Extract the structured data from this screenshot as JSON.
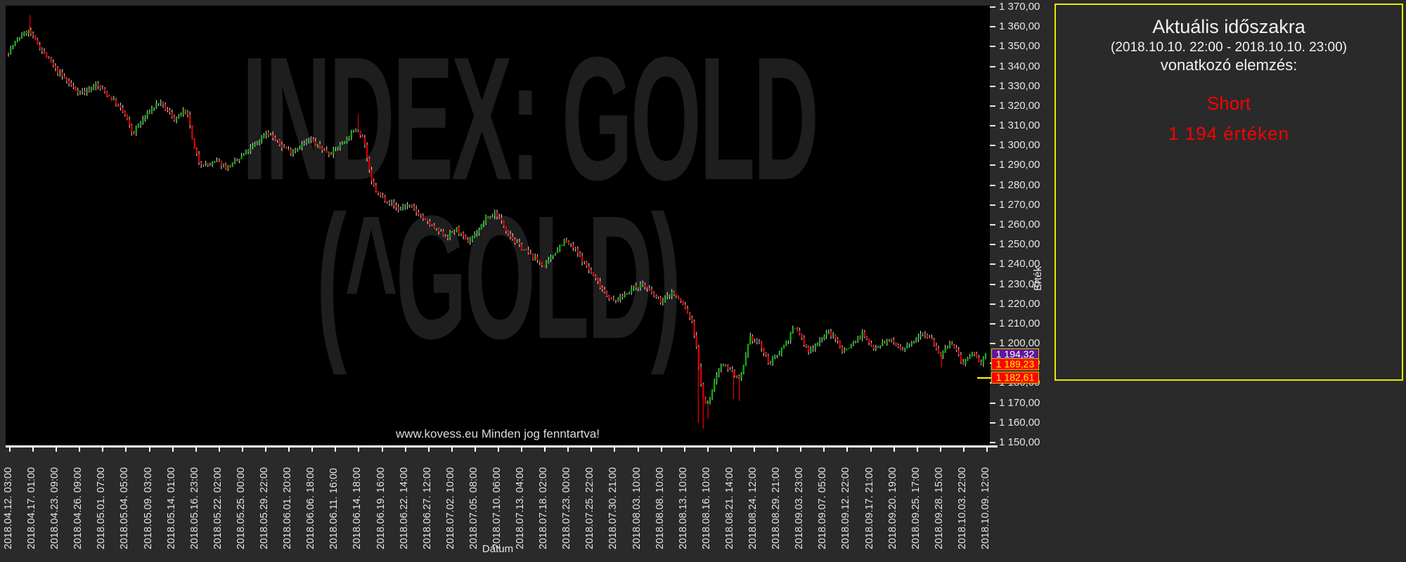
{
  "chart": {
    "watermark_line1": "INDEX: GOLD",
    "watermark_line2": "(^GOLD)",
    "copyright": "www.kovess.eu Minden jog fenntartva!",
    "x_axis": {
      "title": "Dátum",
      "labels": [
        "2018.04.12. 03:00",
        "2018.04.17. 01:00",
        "2018.04.23. 09:00",
        "2018.04.26. 09:00",
        "2018.05.01. 07:00",
        "2018.05.04. 05:00",
        "2018.05.09. 03:00",
        "2018.05.14. 01:00",
        "2018.05.16. 23:00",
        "2018.05.22. 02:00",
        "2018.05.25. 00:00",
        "2018.05.29. 22:00",
        "2018.06.01. 20:00",
        "2018.06.06. 18:00",
        "2018.06.11. 16:00",
        "2018.06.14. 18:00",
        "2018.06.19. 16:00",
        "2018.06.22. 14:00",
        "2018.06.27. 12:00",
        "2018.07.02. 10:00",
        "2018.07.05. 08:00",
        "2018.07.10. 06:00",
        "2018.07.13. 04:00",
        "2018.07.18. 02:00",
        "2018.07.23. 00:00",
        "2018.07.25. 22:00",
        "2018.07.30. 21:00",
        "2018.08.03. 10:00",
        "2018.08.08. 10:00",
        "2018.08.13. 10:00",
        "2018.08.16. 10:00",
        "2018.08.21. 14:00",
        "2018.08.24. 12:00",
        "2018.08.29. 21:00",
        "2018.09.03. 23:00",
        "2018.09.07. 05:00",
        "2018.09.12. 22:00",
        "2018.09.17. 21:00",
        "2018.09.20. 19:00",
        "2018.09.25. 17:00",
        "2018.09.28. 15:00",
        "2018.10.03. 22:00",
        "2018.10.09. 12:00"
      ]
    },
    "y_axis": {
      "title": "Érték",
      "labels": [
        "1 370,00",
        "1 360,00",
        "1 350,00",
        "1 340,00",
        "1 330,00",
        "1 320,00",
        "1 310,00",
        "1 300,00",
        "1 290,00",
        "1 280,00",
        "1 270,00",
        "1 260,00",
        "1 250,00",
        "1 240,00",
        "1 230,00",
        "1 220,00",
        "1 210,00",
        "1 200,00",
        "1 190,00",
        "1 180,00",
        "1 170,00",
        "1 160,00",
        "1 150,00"
      ]
    },
    "price_labels": [
      {
        "text": "1 194,32",
        "value": 1194.32,
        "bg": "#5e189b",
        "fg": "#ffffff",
        "marker": false
      },
      {
        "text": "1 189,23",
        "value": 1189.23,
        "bg": "#ff0000",
        "fg": "#ffff00",
        "marker": false
      },
      {
        "text": "1 182,61",
        "value": 1182.61,
        "bg": "#ff0000",
        "fg": "#ffff00",
        "marker": true
      }
    ],
    "chart_data": {
      "type": "candlestick",
      "symbol": "INDEX: GOLD (^GOLD)",
      "xlabel": "Dátum",
      "ylabel": "Érték",
      "x_range": [
        "2018.04.12. 03:00",
        "2018.10.10. 23:00"
      ],
      "ylim": [
        1150,
        1370
      ],
      "y_step": 10,
      "grid": false,
      "legend": false,
      "last_values": [
        1194.32,
        1189.23,
        1182.61
      ],
      "colors": {
        "up": "#00b300",
        "down": "#d40000",
        "wick": "#e8e8e8",
        "spike": "#d40000"
      },
      "candle_count": 437,
      "seed": 7,
      "jitter": 2.2,
      "wick": 1.8,
      "price_path_anchors": [
        [
          0.0,
          1347
        ],
        [
          0.008,
          1352
        ],
        [
          0.015,
          1356
        ],
        [
          0.022,
          1358
        ],
        [
          0.03,
          1352
        ],
        [
          0.04,
          1345
        ],
        [
          0.05,
          1338
        ],
        [
          0.06,
          1333
        ],
        [
          0.07,
          1328
        ],
        [
          0.08,
          1327
        ],
        [
          0.09,
          1331
        ],
        [
          0.1,
          1327
        ],
        [
          0.11,
          1322
        ],
        [
          0.12,
          1316
        ],
        [
          0.128,
          1306
        ],
        [
          0.135,
          1311
        ],
        [
          0.145,
          1317
        ],
        [
          0.155,
          1322
        ],
        [
          0.165,
          1317
        ],
        [
          0.172,
          1313
        ],
        [
          0.18,
          1317
        ],
        [
          0.186,
          1314
        ],
        [
          0.19,
          1300
        ],
        [
          0.196,
          1292
        ],
        [
          0.205,
          1290
        ],
        [
          0.215,
          1292
        ],
        [
          0.225,
          1289
        ],
        [
          0.235,
          1292
        ],
        [
          0.245,
          1297
        ],
        [
          0.255,
          1301
        ],
        [
          0.265,
          1307
        ],
        [
          0.272,
          1304
        ],
        [
          0.28,
          1300
        ],
        [
          0.29,
          1297
        ],
        [
          0.3,
          1300
        ],
        [
          0.31,
          1303
        ],
        [
          0.32,
          1299
        ],
        [
          0.33,
          1296
        ],
        [
          0.34,
          1300
        ],
        [
          0.35,
          1305
        ],
        [
          0.358,
          1309
        ],
        [
          0.365,
          1303
        ],
        [
          0.372,
          1282
        ],
        [
          0.38,
          1275
        ],
        [
          0.39,
          1272
        ],
        [
          0.4,
          1268
        ],
        [
          0.41,
          1270
        ],
        [
          0.42,
          1266
        ],
        [
          0.43,
          1261
        ],
        [
          0.44,
          1257
        ],
        [
          0.45,
          1254
        ],
        [
          0.46,
          1258
        ],
        [
          0.47,
          1251
        ],
        [
          0.48,
          1256
        ],
        [
          0.49,
          1263
        ],
        [
          0.5,
          1266
        ],
        [
          0.51,
          1258
        ],
        [
          0.52,
          1251
        ],
        [
          0.53,
          1247
        ],
        [
          0.54,
          1243
        ],
        [
          0.55,
          1239
        ],
        [
          0.56,
          1246
        ],
        [
          0.57,
          1252
        ],
        [
          0.58,
          1248
        ],
        [
          0.59,
          1241
        ],
        [
          0.6,
          1234
        ],
        [
          0.61,
          1227
        ],
        [
          0.62,
          1221
        ],
        [
          0.63,
          1224
        ],
        [
          0.64,
          1228
        ],
        [
          0.65,
          1230
        ],
        [
          0.66,
          1225
        ],
        [
          0.67,
          1221
        ],
        [
          0.68,
          1226
        ],
        [
          0.69,
          1221
        ],
        [
          0.7,
          1212
        ],
        [
          0.705,
          1200
        ],
        [
          0.71,
          1178
        ],
        [
          0.715,
          1168
        ],
        [
          0.72,
          1174
        ],
        [
          0.725,
          1183
        ],
        [
          0.73,
          1190
        ],
        [
          0.74,
          1187
        ],
        [
          0.75,
          1181
        ],
        [
          0.755,
          1192
        ],
        [
          0.76,
          1203
        ],
        [
          0.77,
          1200
        ],
        [
          0.775,
          1194
        ],
        [
          0.78,
          1190
        ],
        [
          0.79,
          1196
        ],
        [
          0.8,
          1203
        ],
        [
          0.805,
          1208
        ],
        [
          0.81,
          1206
        ],
        [
          0.815,
          1200
        ],
        [
          0.82,
          1196
        ],
        [
          0.83,
          1201
        ],
        [
          0.84,
          1206
        ],
        [
          0.85,
          1201
        ],
        [
          0.855,
          1196
        ],
        [
          0.865,
          1200
        ],
        [
          0.875,
          1205
        ],
        [
          0.885,
          1198
        ],
        [
          0.895,
          1200
        ],
        [
          0.905,
          1202
        ],
        [
          0.915,
          1196
        ],
        [
          0.925,
          1200
        ],
        [
          0.935,
          1206
        ],
        [
          0.945,
          1203
        ],
        [
          0.955,
          1194
        ],
        [
          0.965,
          1200
        ],
        [
          0.972,
          1196
        ],
        [
          0.978,
          1189
        ],
        [
          0.985,
          1193
        ],
        [
          0.99,
          1196
        ],
        [
          0.995,
          1189
        ],
        [
          1.0,
          1194.3
        ]
      ],
      "wick_spikes": [
        {
          "t": 0.022,
          "price": 1366,
          "dir": "high"
        },
        {
          "t": 0.358,
          "price": 1316,
          "dir": "high"
        },
        {
          "t": 0.706,
          "price": 1160,
          "dir": "low"
        },
        {
          "t": 0.711,
          "price": 1157,
          "dir": "low"
        },
        {
          "t": 0.716,
          "price": 1162,
          "dir": "low"
        },
        {
          "t": 0.742,
          "price": 1172,
          "dir": "low"
        },
        {
          "t": 0.748,
          "price": 1171,
          "dir": "low"
        },
        {
          "t": 0.955,
          "price": 1188,
          "dir": "low"
        }
      ]
    }
  },
  "panel": {
    "title": "Aktuális időszakra",
    "period": "(2018.10.10. 22:00 - 2018.10.10. 23:00)",
    "subtitle": "vonatkozó elemzés:",
    "signal": "Short",
    "signal_value": "1 194  értéken",
    "signal_color": "#ff0000",
    "border_color": "#e8e800"
  }
}
